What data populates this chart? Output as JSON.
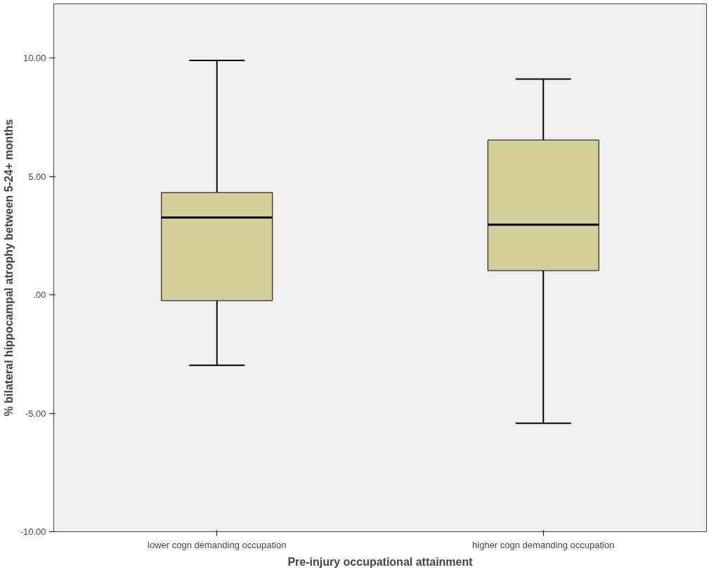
{
  "chart_data": {
    "type": "box",
    "xlabel": "Pre-injury occupational attainment",
    "ylabel": "% bilateral hippocampal atrophy between 5-24+ months",
    "categories": [
      "lower cogn demanding occupation",
      "higher cogn demanding occupation"
    ],
    "boxes": [
      {
        "low": -2.97,
        "q1": -0.24,
        "median": 3.27,
        "q3": 4.33,
        "high": 9.91
      },
      {
        "low": -5.42,
        "q1": 1.03,
        "median": 2.97,
        "q3": 6.55,
        "high": 9.12
      }
    ],
    "color": "#d3ce9a",
    "ylim": [
      -10,
      12.3
    ],
    "yticks": [
      {
        "value": -10,
        "label": "-10.00"
      },
      {
        "value": -5,
        "label": "-5.00"
      },
      {
        "value": 0,
        "label": ".00"
      },
      {
        "value": 5,
        "label": "5.00"
      },
      {
        "value": 10,
        "label": "10.00"
      }
    ],
    "grid": false
  }
}
